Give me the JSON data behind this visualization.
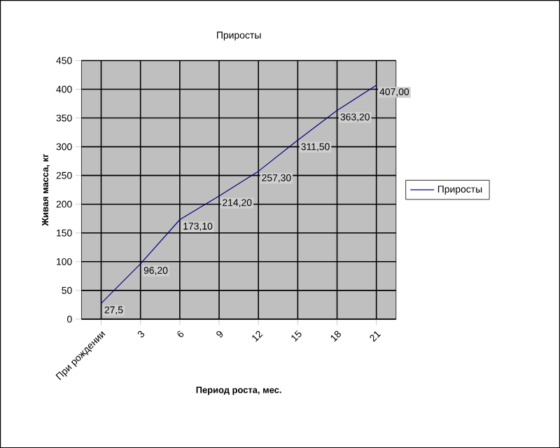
{
  "chart_data": {
    "type": "line",
    "title": "Приросты",
    "xlabel": "Период роста, мес.",
    "ylabel": "Живая масса, кг",
    "categories": [
      "При рождении",
      "3",
      "6",
      "9",
      "12",
      "15",
      "18",
      "21"
    ],
    "series": [
      {
        "name": "Приросты",
        "color": "#000080",
        "values": [
          27.5,
          96.2,
          173.1,
          214.2,
          257.3,
          311.5,
          363.2,
          407.0
        ],
        "value_labels": [
          "27,5",
          "96,20",
          "173,10",
          "214,20",
          "257,30",
          "311,50",
          "363,20",
          "407,00"
        ]
      }
    ],
    "ylim": [
      0,
      450
    ],
    "yticks": [
      0,
      50,
      100,
      150,
      200,
      250,
      300,
      350,
      400,
      450
    ],
    "grid": true,
    "legend": "right",
    "marker": "none",
    "line_style": "solid"
  }
}
